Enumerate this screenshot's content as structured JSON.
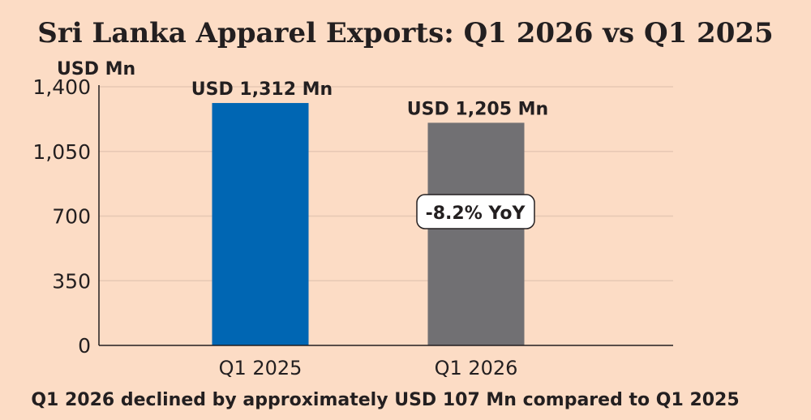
{
  "chart_data": {
    "type": "bar",
    "title": "Sri Lanka Apparel Exports: Q1 2026 vs Q1 2025",
    "ylabel": "USD Mn",
    "xlabel": "",
    "categories": [
      "Q1 2025",
      "Q1 2026"
    ],
    "values": [
      1312,
      1205
    ],
    "data_labels": [
      "USD 1,312 Mn",
      "USD 1,205 Mn"
    ],
    "colors": [
      "#0066b3",
      "#717073"
    ],
    "ylim": [
      0,
      1400
    ],
    "yticks": [
      0,
      350,
      700,
      1050,
      1400
    ],
    "ytick_labels": [
      "0",
      "350",
      "700",
      "1,050",
      "1,400"
    ],
    "grid": true,
    "annotation": "-8.2% YoY",
    "footnote": "Q1 2026 declined by approximately USD 107 Mn compared to Q1 2025"
  }
}
